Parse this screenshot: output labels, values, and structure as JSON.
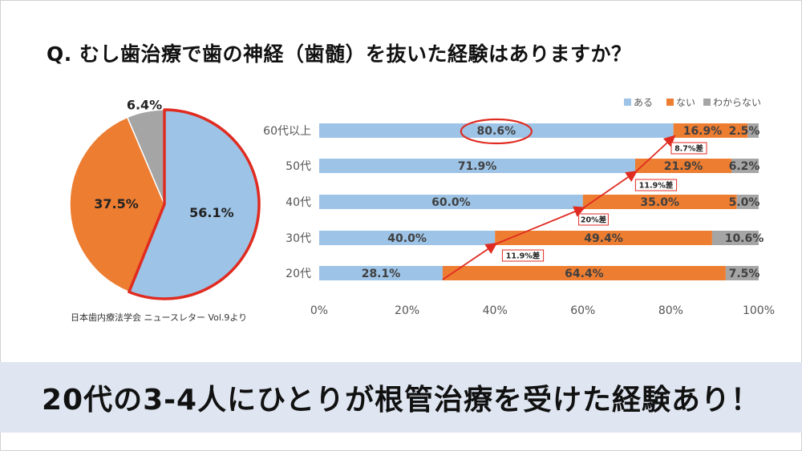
{
  "question": "Q. むし歯治療で歯の神経（歯髄）を抜いた経験はありますか？",
  "source": "日本歯内療法学会 ニュースレター Vol.9より",
  "conclusion": "20代の3-4人にひとりが根管治療を受けた経験あり！",
  "colors": {
    "aru": "#9dc3e6",
    "nai": "#ed7d31",
    "wakaranai": "#a5a5a5",
    "highlight": "#e02b20"
  },
  "chart_data": [
    {
      "type": "pie",
      "labels": [
        "ある",
        "ない",
        "わからない"
      ],
      "values": [
        56.1,
        37.5,
        6.4
      ],
      "value_labels": [
        "56.1%",
        "37.5%",
        "6.4%"
      ]
    },
    {
      "type": "bar",
      "orientation": "horizontal",
      "stacked": true,
      "categories": [
        "60代以上",
        "50代",
        "40代",
        "30代",
        "20代"
      ],
      "series": [
        {
          "name": "ある",
          "values": [
            80.6,
            71.9,
            60.0,
            40.0,
            28.1
          ],
          "labels": [
            "80.6%",
            "71.9%",
            "60.0%",
            "40.0%",
            "28.1%"
          ]
        },
        {
          "name": "ない",
          "values": [
            16.9,
            21.9,
            35.0,
            49.4,
            64.4
          ],
          "labels": [
            "16.9%",
            "21.9%",
            "35.0%",
            "49.4%",
            "64.4%"
          ]
        },
        {
          "name": "わからない",
          "values": [
            2.5,
            6.2,
            5.0,
            10.6,
            7.5
          ],
          "labels": [
            "2.5%",
            "6.2%",
            "5.0%",
            "10.6%",
            "7.5%"
          ]
        }
      ],
      "xlim": [
        0,
        100
      ],
      "x_ticks": [
        "0%",
        "20%",
        "40%",
        "60%",
        "80%",
        "100%"
      ],
      "legend_position": "top-right",
      "annotations": [
        "11.9%差",
        "20%差",
        "11.9%差",
        "8.7%差"
      ]
    }
  ]
}
